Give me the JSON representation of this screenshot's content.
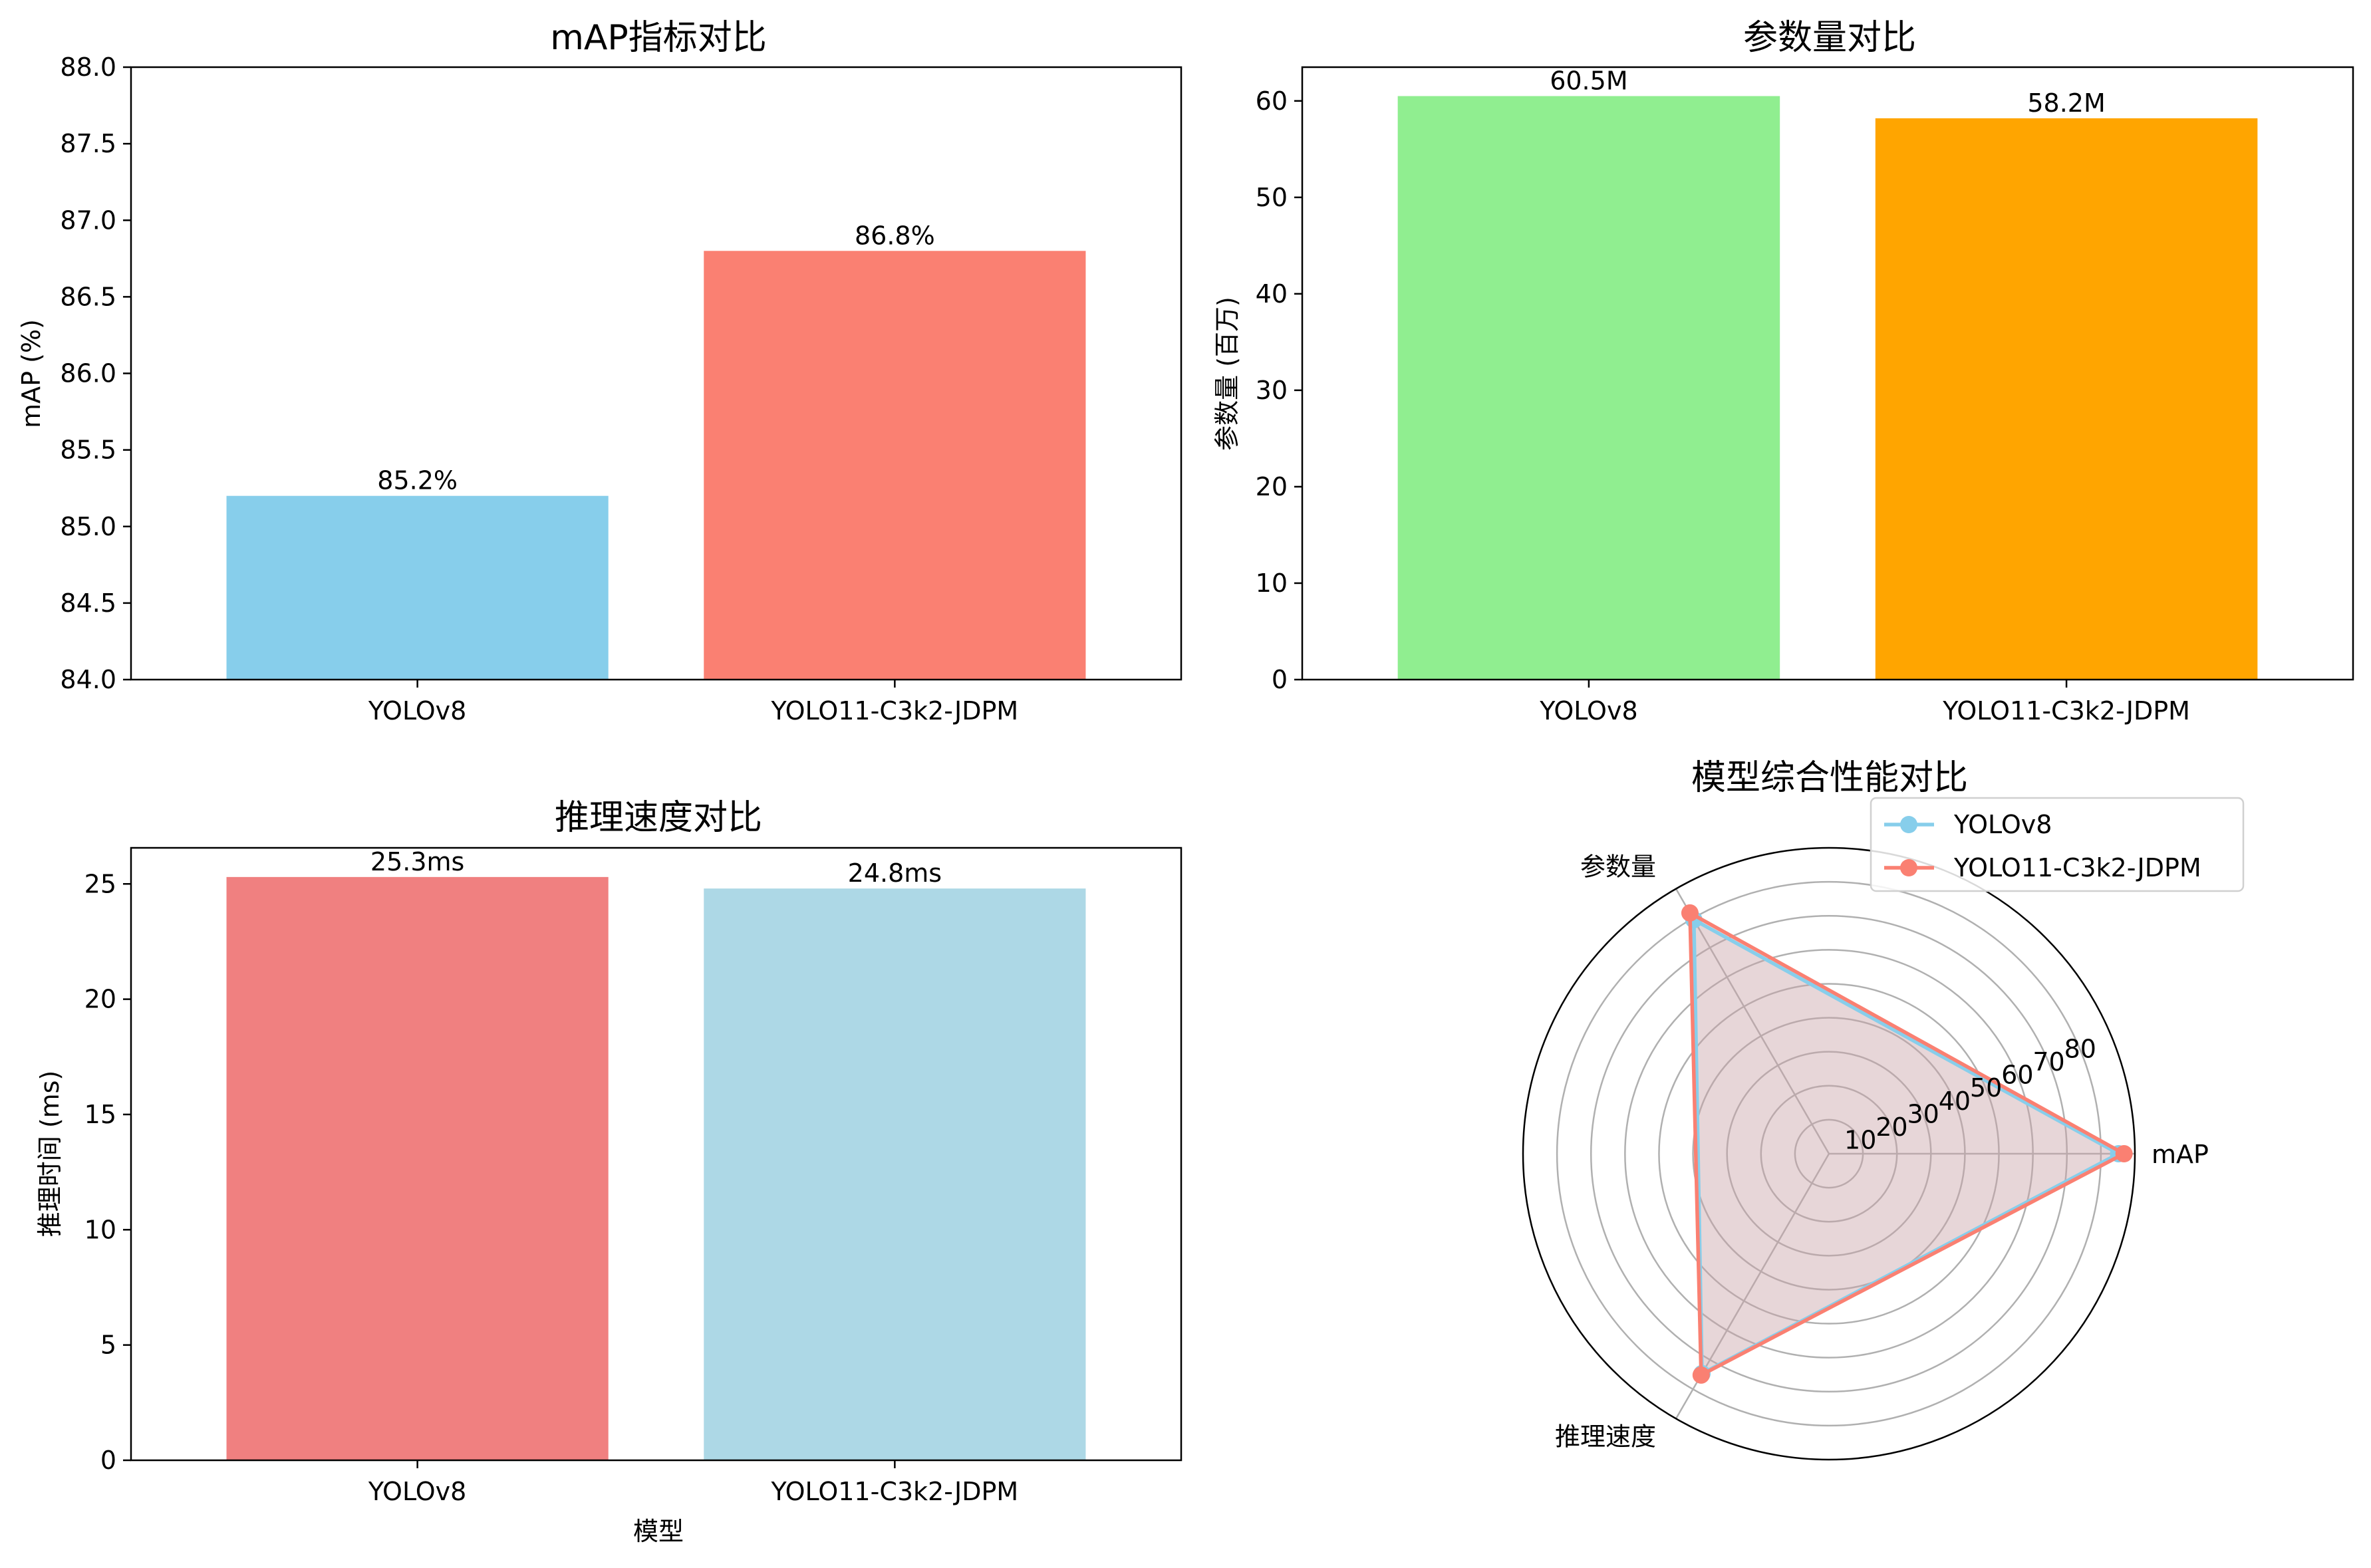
{
  "colors": {
    "skyblue": "#87CEEB",
    "salmon": "#FA8072",
    "lightgreen": "#90EE90",
    "orange": "#FFA500",
    "lightcoral": "#F08080",
    "lightblue": "#ADD8E6",
    "grid": "#b0b0b0",
    "radar_fill": "#d2aeb6"
  },
  "chart_data": [
    {
      "type": "bar",
      "title": "mAP指标对比",
      "categories": [
        "YOLOv8",
        "YOLO11-C3k2-JDPM"
      ],
      "values": [
        85.2,
        86.8
      ],
      "value_labels": [
        "85.2%",
        "86.8%"
      ],
      "bar_colors": [
        "#87CEEB",
        "#FA8072"
      ],
      "xlabel": "",
      "ylabel": "mAP (%)",
      "ylim": [
        84.0,
        88.0
      ],
      "yticks": [
        84.0,
        84.5,
        85.0,
        85.5,
        86.0,
        86.5,
        87.0,
        87.5,
        88.0
      ],
      "ytick_labels": [
        "84.0",
        "84.5",
        "85.0",
        "85.5",
        "86.0",
        "86.5",
        "87.0",
        "87.5",
        "88.0"
      ]
    },
    {
      "type": "bar",
      "title": "参数量对比",
      "categories": [
        "YOLOv8",
        "YOLO11-C3k2-JDPM"
      ],
      "values": [
        60.5,
        58.2
      ],
      "value_labels": [
        "60.5M",
        "58.2M"
      ],
      "bar_colors": [
        "#90EE90",
        "#FFA500"
      ],
      "xlabel": "",
      "ylabel": "参数量 (百万)",
      "ylim": [
        0,
        63.5
      ],
      "yticks": [
        0,
        10,
        20,
        30,
        40,
        50,
        60
      ],
      "ytick_labels": [
        "0",
        "10",
        "20",
        "30",
        "40",
        "50",
        "60"
      ]
    },
    {
      "type": "bar",
      "title": "推理速度对比",
      "categories": [
        "YOLOv8",
        "YOLO11-C3k2-JDPM"
      ],
      "values": [
        25.3,
        24.8
      ],
      "value_labels": [
        "25.3ms",
        "24.8ms"
      ],
      "bar_colors": [
        "#F08080",
        "#ADD8E6"
      ],
      "xlabel": "模型",
      "ylabel": "推理时间 (ms)",
      "ylim": [
        0,
        26.565
      ],
      "yticks": [
        0,
        5,
        10,
        15,
        20,
        25
      ],
      "ytick_labels": [
        "0",
        "5",
        "10",
        "15",
        "20",
        "25"
      ]
    },
    {
      "type": "radar",
      "title": "模型综合性能对比",
      "axes": [
        "mAP",
        "参数量",
        "推理速度"
      ],
      "rlim": [
        0,
        90
      ],
      "rticks": [
        10,
        20,
        30,
        40,
        50,
        60,
        70,
        80
      ],
      "rtick_labels": [
        "10",
        "20",
        "30",
        "40",
        "50",
        "60",
        "70",
        "80"
      ],
      "legend_position": "upper-right",
      "series": [
        {
          "name": "YOLOv8",
          "values": [
            85.2,
            79.5,
            74.7
          ],
          "color": "#87CEEB"
        },
        {
          "name": "YOLO11-C3k2-JDPM",
          "values": [
            86.8,
            81.8,
            75.2
          ],
          "color": "#FA8072"
        }
      ]
    }
  ]
}
